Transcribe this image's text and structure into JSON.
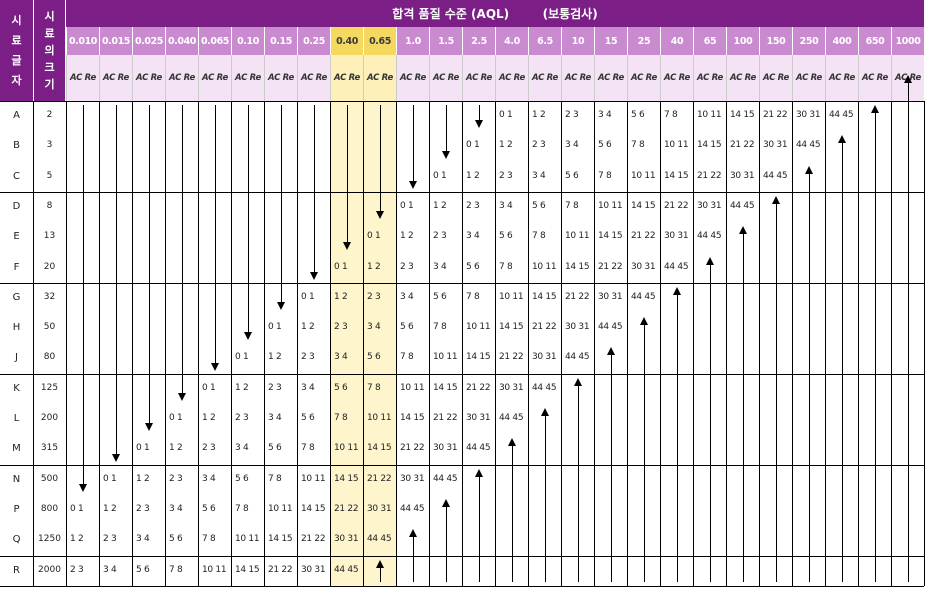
{
  "colors": {
    "header": "#7b1f86",
    "aql_header": "#c98ad0",
    "highlight": "#f5d860",
    "highlight_light": "#fff5cc",
    "acre_row": "#f3e3f4"
  },
  "header": {
    "code_letter_chars": [
      "시",
      "료",
      "글",
      "자"
    ],
    "sample_size_chars": [
      "시",
      "료",
      "의",
      "크",
      "기"
    ],
    "title": "합격 품질 수준 (AQL)        (보통검사)"
  },
  "aql_levels": [
    "0.010",
    "0.015",
    "0.025",
    "0.040",
    "0.065",
    "0.10",
    "0.15",
    "0.25",
    "0.40",
    "0.65",
    "1.0",
    "1.5",
    "2.5",
    "4.0",
    "6.5",
    "10",
    "15",
    "25",
    "40",
    "65",
    "100",
    "150",
    "250",
    "400",
    "650",
    "1000"
  ],
  "highlighted_aql": [
    "0.40",
    "0.65"
  ],
  "acre_label": "AC Re",
  "rows": [
    {
      "letter": "A",
      "size": "2"
    },
    {
      "letter": "B",
      "size": "3"
    },
    {
      "letter": "C",
      "size": "5"
    },
    {
      "letter": "D",
      "size": "8"
    },
    {
      "letter": "E",
      "size": "13"
    },
    {
      "letter": "F",
      "size": "20"
    },
    {
      "letter": "G",
      "size": "32"
    },
    {
      "letter": "H",
      "size": "50"
    },
    {
      "letter": "J",
      "size": "80"
    },
    {
      "letter": "K",
      "size": "125"
    },
    {
      "letter": "L",
      "size": "200"
    },
    {
      "letter": "M",
      "size": "315"
    },
    {
      "letter": "N",
      "size": "500"
    },
    {
      "letter": "P",
      "size": "800"
    },
    {
      "letter": "Q",
      "size": "1250"
    },
    {
      "letter": "R",
      "size": "2000"
    }
  ],
  "arrow_down_start_row": [
    13,
    12,
    11,
    10,
    9,
    8,
    7,
    6,
    5,
    4,
    3,
    2,
    1,
    0,
    -1,
    -2,
    -3,
    -4,
    -5,
    -6,
    -7,
    -8,
    -9,
    -10,
    -11,
    -12
  ],
  "ac_re_values": [
    "0 1",
    "1 2",
    "2 3",
    "3 4",
    "5 6",
    "7 8",
    "10 11",
    "14 15",
    "21 22",
    "30 31",
    "44 45"
  ],
  "icons": {
    "down": "arrow-down-icon",
    "up": "arrow-up-icon"
  }
}
